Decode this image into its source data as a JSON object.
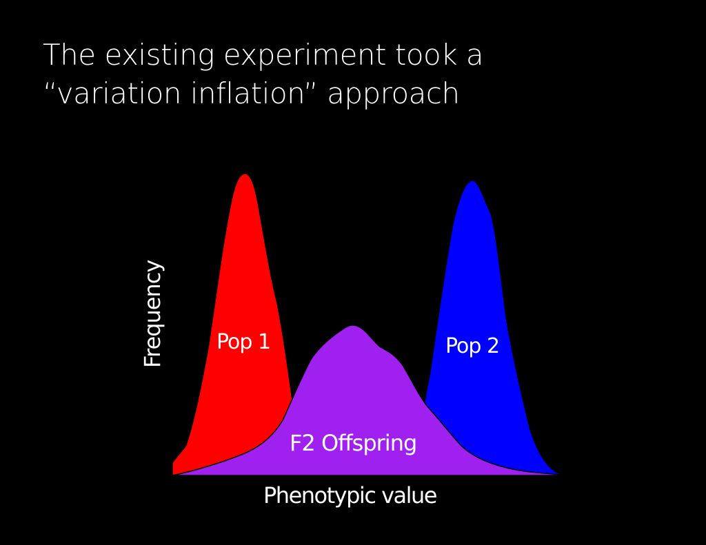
{
  "slide": {
    "title_line1": "The existing experiment took a",
    "title_line2": "“variation inflation” approach"
  },
  "diagram": {
    "y_axis_label": "Frequency",
    "x_axis_label": "Phenotypic value",
    "curves": [
      {
        "name": "Pop 1",
        "color": "#ff0000"
      },
      {
        "name": "Pop 2",
        "color": "#0000ff"
      },
      {
        "name": "F2 Offspring",
        "color": "#a020f0"
      }
    ]
  }
}
